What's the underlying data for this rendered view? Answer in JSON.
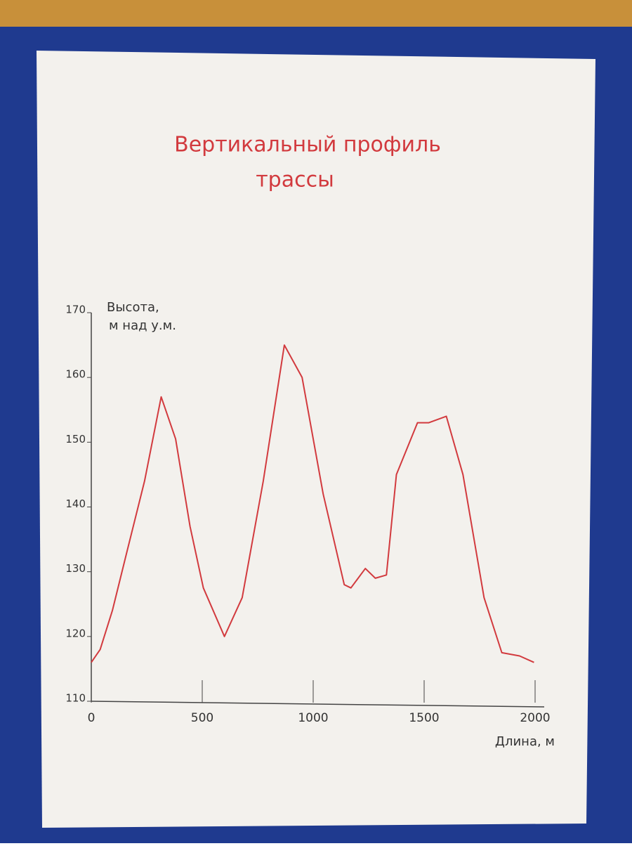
{
  "chart_data": {
    "type": "line",
    "title": [
      "Вертикальный профиль",
      "трассы"
    ],
    "y_label": [
      "Высота,",
      "м над у.м."
    ],
    "x_label": "Длина, м",
    "series": [
      {
        "color": "#d23a3e",
        "x": [
          0,
          40,
          95,
          160,
          240,
          315,
          380,
          445,
          505,
          600,
          680,
          775,
          870,
          950,
          1045,
          1140,
          1170,
          1235,
          1280,
          1330,
          1375,
          1470,
          1520,
          1600,
          1675,
          1770,
          1850,
          1930,
          1995
        ],
        "values": [
          116,
          118,
          124,
          133,
          144,
          157,
          150.5,
          137,
          127.5,
          120,
          126,
          144,
          165,
          160,
          142,
          128,
          127.5,
          130.5,
          129,
          129.5,
          145,
          153,
          153,
          154,
          145,
          126,
          117.5,
          117,
          116
        ]
      }
    ],
    "xlim": [
      0,
      2000
    ],
    "xticks": [
      0,
      500,
      1000,
      1500,
      2000
    ],
    "ylim": [
      110,
      170
    ],
    "yticks": [
      110,
      120,
      130,
      140,
      150,
      160,
      170
    ]
  }
}
